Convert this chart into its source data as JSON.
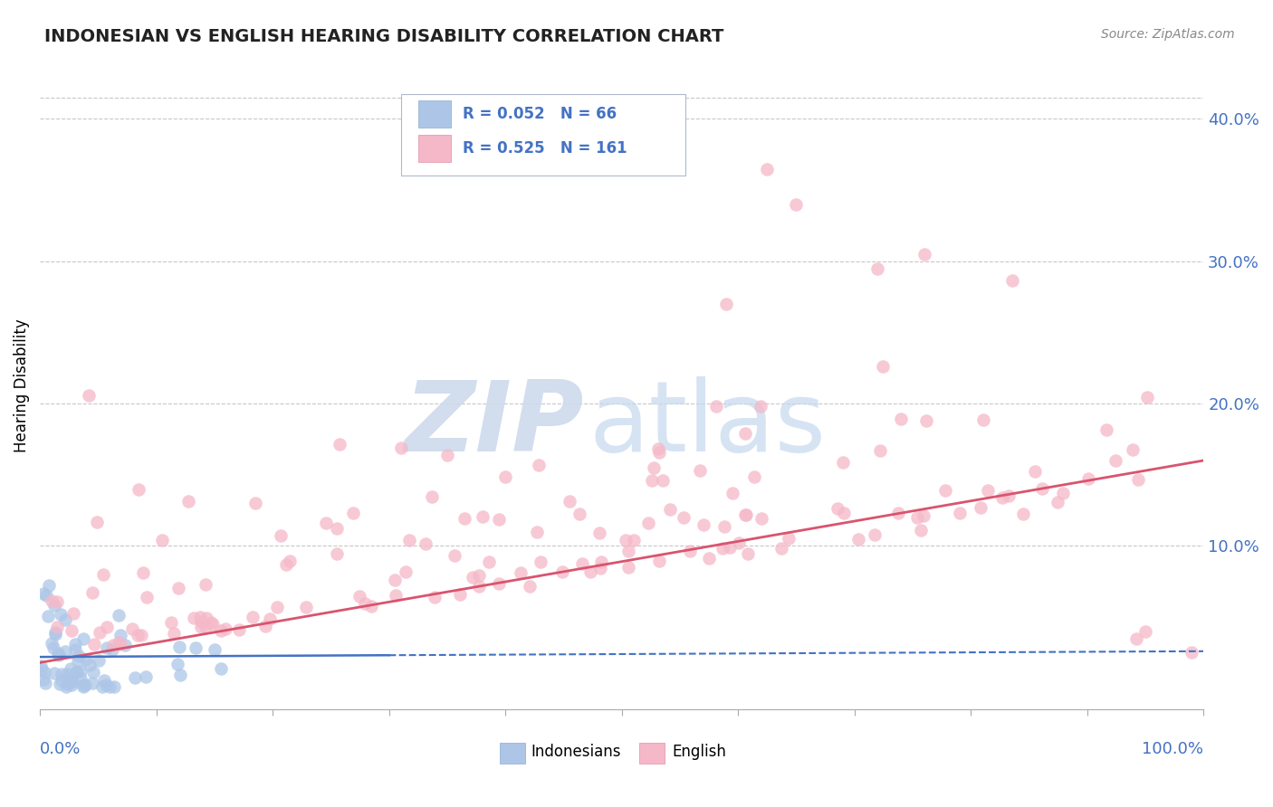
{
  "title": "INDONESIAN VS ENGLISH HEARING DISABILITY CORRELATION CHART",
  "source": "Source: ZipAtlas.com",
  "ylabel": "Hearing Disability",
  "legend_indonesian": "Indonesians",
  "legend_english": "English",
  "indonesian_R": "R = 0.052",
  "indonesian_N": "N = 66",
  "english_R": "R = 0.525",
  "english_N": "N = 161",
  "color_indonesian": "#adc6e8",
  "color_english": "#f5b8c8",
  "color_trendline_indonesian": "#4472c4",
  "color_trendline_english": "#d9546e",
  "color_axis_text": "#4472c4",
  "color_grid": "#c8c8c8",
  "xlim": [
    0.0,
    1.0
  ],
  "ylim": [
    -0.015,
    0.44
  ],
  "yticks": [
    0.1,
    0.2,
    0.3,
    0.4
  ],
  "ytick_labels": [
    "10.0%",
    "20.0%",
    "30.0%",
    "40.0%"
  ],
  "indonesian_trend_x": [
    0.0,
    1.0
  ],
  "indonesian_trend_y": [
    0.022,
    0.026
  ],
  "english_trend_x": [
    0.0,
    1.0
  ],
  "english_trend_y": [
    0.018,
    0.16
  ],
  "indo_trend_solid_end": 0.3,
  "watermark_zip_color": "#cddaec",
  "watermark_atlas_color": "#c5d8ee"
}
